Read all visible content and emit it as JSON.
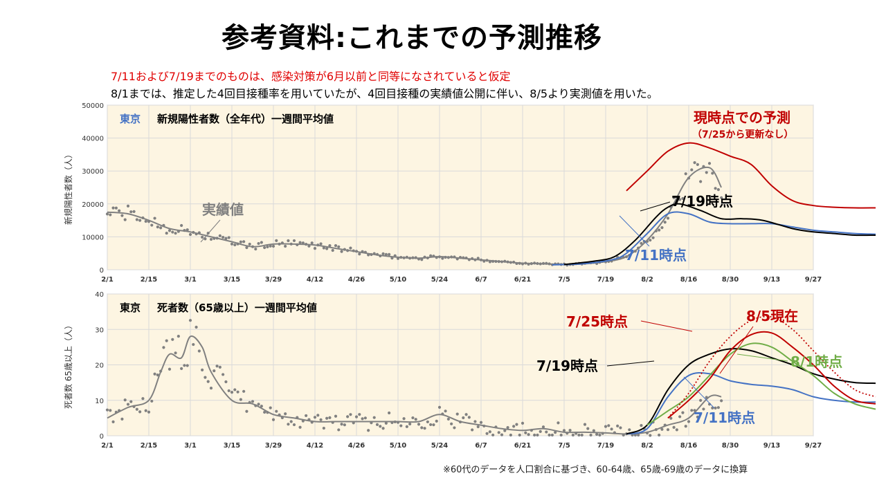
{
  "page": {
    "title": "参考資料:これまでの予測推移",
    "note_red": "7/11および7/19までのものは、感染対策が6月以前と同等になされていると仮定",
    "note_black": "8/1までは、推定した4回目接種率を用いていたが、4回目接種の実績値公開に伴い、8/5より実測値を用いた。",
    "footnote": "※60代のデータを人口割合に基づき、60-64歳、65歳-69歳のデータに換算"
  },
  "colors": {
    "actual": "#808080",
    "forecast_0711": "#4472c4",
    "forecast_0719": "#000000",
    "forecast_0725": "#c00000",
    "forecast_0801": "#70ad47",
    "forecast_0805": "#c00000",
    "panel_bg": "#fdf5e2",
    "highlight": "#4472c4"
  },
  "chart_data": [
    {
      "type": "line",
      "panel_title_prefix": "東京",
      "panel_title": "新規陽性者数（全年代）一週間平均値",
      "ylabel": "新規陽性者数（人）",
      "ylim": [
        0,
        50000
      ],
      "yticks": [
        "0",
        "10000",
        "20000",
        "30000",
        "40000",
        "50000"
      ],
      "xticks": [
        "2/1",
        "2/15",
        "3/1",
        "3/15",
        "3/29",
        "4/12",
        "4/26",
        "5/10",
        "5/24",
        "6/7",
        "6/21",
        "7/5",
        "7/19",
        "8/2",
        "8/16",
        "8/30",
        "9/13",
        "9/27"
      ],
      "grid": true,
      "annotations": {
        "actual": "実績値",
        "f0711": "7/11時点",
        "f0719": "7/19時点",
        "current": "現時点での予測",
        "current_sub": "（7/25から更新なし）"
      },
      "series": [
        {
          "key": "actual",
          "x": [
            0,
            7,
            14,
            21,
            28,
            35,
            42,
            49,
            56,
            63,
            70,
            77,
            84,
            91,
            98,
            105,
            112,
            119,
            126,
            133,
            140,
            147,
            154,
            161,
            168,
            175,
            182,
            189,
            196,
            203,
            207
          ],
          "values": [
            17500,
            17000,
            15000,
            12500,
            11500,
            10000,
            8500,
            7000,
            7800,
            7800,
            7500,
            6500,
            5500,
            4500,
            3800,
            3500,
            4000,
            3500,
            3000,
            2500,
            2000,
            1800,
            1600,
            1800,
            2500,
            4000,
            9000,
            17000,
            28000,
            31000,
            25000
          ]
        },
        {
          "key": "forecast_0711",
          "x": [
            150,
            160,
            170,
            175,
            182,
            189,
            196,
            203,
            210,
            217,
            224,
            231,
            238,
            245,
            252,
            259
          ],
          "values": [
            1500,
            1800,
            3000,
            5000,
            11000,
            17000,
            17000,
            14500,
            14000,
            14000,
            14000,
            13000,
            12000,
            11500,
            11000,
            10800
          ]
        },
        {
          "key": "forecast_0719",
          "x": [
            154,
            164,
            171,
            178,
            185,
            189,
            193,
            200,
            207,
            214,
            221,
            231,
            238,
            245,
            252,
            259
          ],
          "values": [
            1600,
            2600,
            4000,
            9000,
            16000,
            19000,
            20000,
            18000,
            15500,
            15500,
            15000,
            12500,
            11500,
            11000,
            10500,
            10500
          ]
        },
        {
          "key": "forecast_0725",
          "x": [
            175,
            182,
            189,
            196,
            203,
            210,
            217,
            224,
            231,
            238,
            245,
            252,
            259
          ],
          "values": [
            24000,
            30000,
            36000,
            38500,
            37000,
            34500,
            32000,
            25500,
            21000,
            19500,
            19000,
            18800,
            18800
          ]
        }
      ]
    },
    {
      "type": "line",
      "panel_title_prefix": "東京",
      "panel_title": "死者数（65歳以上）一週間平均値",
      "ylabel": "死者数 65歳以上（人）",
      "ylim": [
        0,
        40
      ],
      "yticks": [
        "0",
        "10",
        "20",
        "30",
        "40"
      ],
      "xticks": [
        "2/1",
        "2/15",
        "3/1",
        "3/15",
        "3/29",
        "4/12",
        "4/26",
        "5/10",
        "5/24",
        "6/7",
        "6/21",
        "7/5",
        "7/19",
        "8/2",
        "8/16",
        "8/30",
        "9/13",
        "9/27"
      ],
      "grid": true,
      "annotations": {
        "f0725": "7/25時点",
        "f0805": "8/5現在",
        "f0719": "7/19時点",
        "f0801": "8/1時点",
        "f0711": "7/11時点"
      },
      "series": [
        {
          "key": "actual",
          "x": [
            0,
            7,
            14,
            18,
            21,
            25,
            28,
            32,
            35,
            42,
            49,
            56,
            63,
            70,
            77,
            84,
            91,
            98,
            105,
            112,
            119,
            126,
            133,
            140,
            147,
            154,
            161,
            168,
            175,
            182,
            189,
            196,
            203,
            207
          ],
          "values": [
            5,
            8,
            10,
            18,
            23,
            22,
            28,
            25,
            18,
            10,
            9,
            6,
            5,
            4,
            4,
            4,
            4,
            4,
            4,
            6,
            4,
            3,
            2,
            1.5,
            2,
            1,
            1,
            0.8,
            0.5,
            1,
            3,
            5,
            11,
            11
          ]
        },
        {
          "key": "forecast_0711",
          "x": [
            175,
            182,
            189,
            196,
            203,
            210,
            217,
            224,
            231,
            238,
            245,
            252,
            259
          ],
          "values": [
            0.5,
            2,
            11,
            17,
            17.5,
            15.5,
            14.5,
            14,
            13,
            11,
            10,
            9.5,
            9.5
          ]
        },
        {
          "key": "forecast_0719",
          "x": [
            175,
            182,
            189,
            196,
            203,
            210,
            217,
            224,
            231,
            238,
            245,
            252,
            259
          ],
          "values": [
            0.5,
            3,
            13,
            20,
            23,
            24.5,
            24,
            22,
            20,
            17.5,
            16,
            15,
            14.8
          ]
        },
        {
          "key": "forecast_0801",
          "x": [
            182,
            189,
            196,
            203,
            210,
            217,
            224,
            231,
            238,
            245,
            252,
            259
          ],
          "values": [
            3,
            7,
            11,
            17,
            23,
            26,
            25,
            21,
            17,
            12,
            9,
            7.5
          ]
        },
        {
          "key": "forecast_0805",
          "x": [
            189,
            196,
            203,
            210,
            217,
            224,
            231,
            238,
            245,
            252,
            259
          ],
          "values": [
            5,
            10,
            16,
            24,
            28.5,
            29,
            25,
            20,
            14,
            10,
            9
          ]
        },
        {
          "key": "forecast_0725",
          "x": [
            189,
            196,
            203,
            210,
            217,
            224,
            231,
            238,
            245,
            252,
            259
          ],
          "values": [
            5,
            12,
            21,
            28,
            32.5,
            33.5,
            30,
            24,
            18,
            13,
            11
          ]
        }
      ]
    }
  ]
}
